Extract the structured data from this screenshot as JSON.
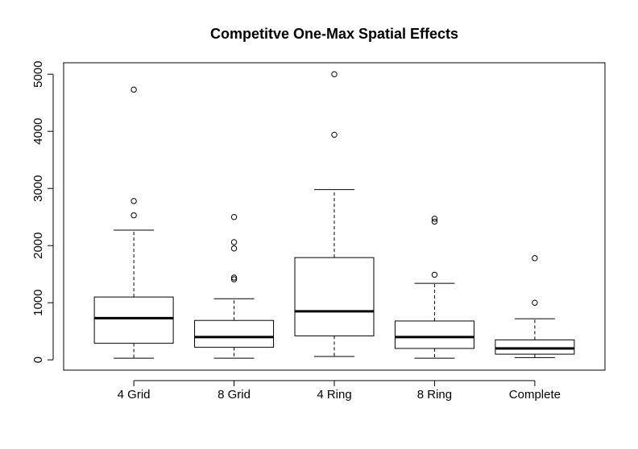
{
  "chart_data": {
    "type": "boxplot",
    "title": "Competitve One-Max Spatial Effects",
    "xlabel": "",
    "ylabel": "",
    "ylim": [
      -180,
      5200
    ],
    "yticks": [
      0,
      1000,
      2000,
      3000,
      4000,
      5000
    ],
    "ytick_labels": [
      "0",
      "1000",
      "2000",
      "3000",
      "4000",
      "5000"
    ],
    "grid": false,
    "categories": [
      "4 Grid",
      "8 Grid",
      "4 Ring",
      "8 Ring",
      "Complete"
    ],
    "boxes": [
      {
        "label": "4 Grid",
        "whisker_low": 30,
        "q1": 290,
        "median": 730,
        "q3": 1100,
        "whisker_high": 2270,
        "outliers": [
          2530,
          2780,
          4730
        ]
      },
      {
        "label": "8 Grid",
        "whisker_low": 30,
        "q1": 220,
        "median": 400,
        "q3": 690,
        "whisker_high": 1070,
        "outliers": [
          1410,
          1440,
          1950,
          2060,
          2500
        ]
      },
      {
        "label": "4 Ring",
        "whisker_low": 60,
        "q1": 420,
        "median": 850,
        "q3": 1790,
        "whisker_high": 2980,
        "outliers": [
          3940,
          5000
        ]
      },
      {
        "label": "8 Ring",
        "whisker_low": 30,
        "q1": 200,
        "median": 400,
        "q3": 680,
        "whisker_high": 1340,
        "outliers": [
          1490,
          2420,
          2470
        ]
      },
      {
        "label": "Complete",
        "whisker_low": 40,
        "q1": 100,
        "median": 200,
        "q3": 350,
        "whisker_high": 720,
        "outliers": [
          1000,
          1780
        ]
      }
    ]
  }
}
